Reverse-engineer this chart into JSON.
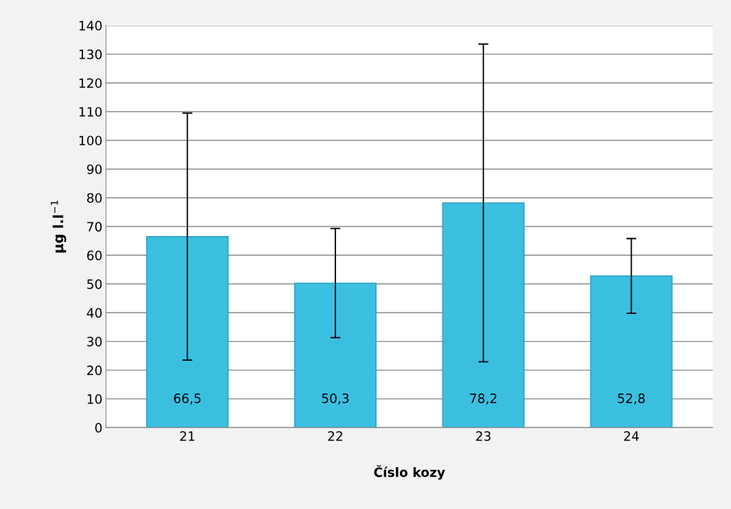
{
  "chart_data": {
    "type": "bar",
    "xlabel": "Číslo kozy",
    "ylabel": "µg l.l$^{−1}$",
    "categories": [
      "21",
      "22",
      "23",
      "24"
    ],
    "values": [
      66.5,
      50.3,
      78.2,
      52.8
    ],
    "errors": [
      43,
      19,
      55.3,
      13
    ],
    "value_labels": [
      "66,5",
      "50,3",
      "78,2",
      "52,8"
    ],
    "color": "#3bbfe0",
    "ylim": [
      0,
      140
    ],
    "yticks": [
      0,
      10,
      20,
      30,
      40,
      50,
      60,
      70,
      80,
      90,
      100,
      110,
      120,
      130,
      140
    ],
    "grid": "y",
    "legend": false
  }
}
